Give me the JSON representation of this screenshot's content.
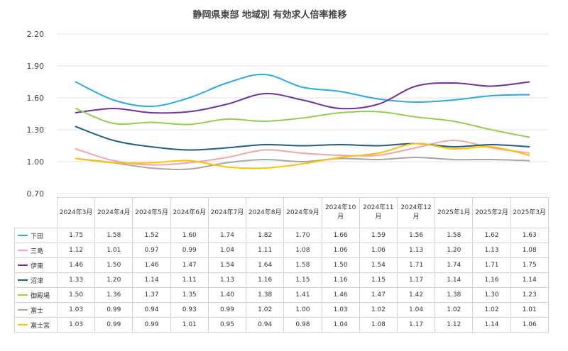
{
  "chart_data": {
    "type": "line",
    "title": "静岡県東部 地域別 有効求人倍率推移",
    "categories": [
      "2024年3月",
      "2024年4月",
      "2024年5月",
      "2024年6月",
      "2024年7月",
      "2024年8月",
      "2024年9月",
      "2024年10月",
      "2024年11月",
      "2024年12月",
      "2025年1月",
      "2025年2月",
      "2025年3月"
    ],
    "category_labels": [
      [
        "2024年3月"
      ],
      [
        "2024年4月"
      ],
      [
        "2024年5月"
      ],
      [
        "2024年6月"
      ],
      [
        "2024年7月"
      ],
      [
        "2024年8月"
      ],
      [
        "2024年9月"
      ],
      [
        "2024年10",
        "月"
      ],
      [
        "2024年11",
        "月"
      ],
      [
        "2024年12",
        "月"
      ],
      [
        "2025年1月"
      ],
      [
        "2025年2月"
      ],
      [
        "2025年3月"
      ]
    ],
    "ylim": [
      0.7,
      2.2
    ],
    "yticks": [
      "0.70",
      "1.00",
      "1.30",
      "1.60",
      "1.90",
      "2.20"
    ],
    "grid": true,
    "legend": "table",
    "series": [
      {
        "name": "下田",
        "color": "#29ABE2",
        "values": [
          1.75,
          1.58,
          1.52,
          1.6,
          1.74,
          1.82,
          1.7,
          1.66,
          1.59,
          1.56,
          1.58,
          1.62,
          1.63
        ]
      },
      {
        "name": "三島",
        "color": "#F4A3A8",
        "values": [
          1.12,
          1.01,
          0.97,
          0.99,
          1.04,
          1.11,
          1.08,
          1.06,
          1.06,
          1.13,
          1.2,
          1.13,
          1.08
        ]
      },
      {
        "name": "伊東",
        "color": "#7030A0",
        "values": [
          1.46,
          1.5,
          1.46,
          1.47,
          1.54,
          1.64,
          1.58,
          1.5,
          1.54,
          1.71,
          1.74,
          1.71,
          1.75
        ]
      },
      {
        "name": "沼津",
        "color": "#1F5F8B",
        "values": [
          1.33,
          1.2,
          1.14,
          1.11,
          1.13,
          1.16,
          1.15,
          1.16,
          1.15,
          1.17,
          1.14,
          1.16,
          1.14
        ]
      },
      {
        "name": "御殿場",
        "color": "#92D050",
        "values": [
          1.5,
          1.36,
          1.37,
          1.35,
          1.4,
          1.38,
          1.41,
          1.46,
          1.47,
          1.42,
          1.38,
          1.3,
          1.23
        ]
      },
      {
        "name": "富士",
        "color": "#A6A6A6",
        "values": [
          1.03,
          0.99,
          0.94,
          0.93,
          0.99,
          1.02,
          1.0,
          1.03,
          1.02,
          1.04,
          1.02,
          1.02,
          1.01
        ]
      },
      {
        "name": "富士宮",
        "color": "#FFC000",
        "values": [
          1.03,
          0.99,
          0.99,
          1.01,
          0.95,
          0.94,
          0.98,
          1.04,
          1.08,
          1.17,
          1.12,
          1.14,
          1.06
        ]
      }
    ]
  }
}
